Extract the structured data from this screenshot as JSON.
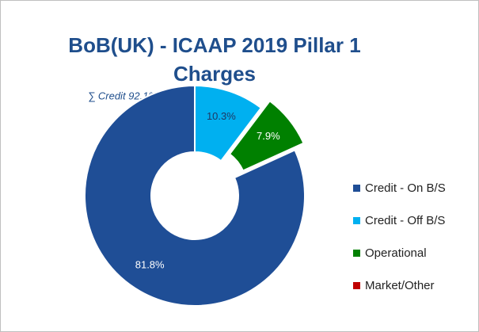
{
  "chart_data": {
    "type": "donut",
    "title": "BoB(UK) - ICAAP 2019 Pillar 1 Charges",
    "annotation": "∑ Credit 92.1%",
    "categories": [
      "Credit - On B/S",
      "Credit - Off B/S",
      "Operational",
      "Market/Other"
    ],
    "values": [
      81.8,
      10.3,
      7.9,
      0
    ],
    "value_labels": [
      "81.8%",
      "10.3%",
      "7.9%",
      null
    ],
    "colors": [
      "#1f4e96",
      "#00b0f0",
      "#008000",
      "#c00000"
    ],
    "exploded": [
      "Operational"
    ],
    "legend": "right"
  }
}
